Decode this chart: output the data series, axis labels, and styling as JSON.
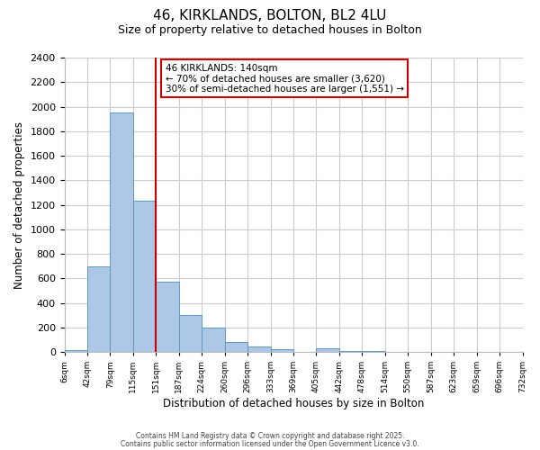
{
  "title": "46, KIRKLANDS, BOLTON, BL2 4LU",
  "subtitle": "Size of property relative to detached houses in Bolton",
  "xlabel": "Distribution of detached houses by size in Bolton",
  "ylabel": "Number of detached properties",
  "bar_values": [
    15,
    700,
    1950,
    1230,
    575,
    300,
    195,
    80,
    45,
    25,
    0,
    30,
    10,
    5,
    0,
    0,
    0,
    0,
    0,
    0
  ],
  "bin_edges": [
    6,
    42,
    79,
    115,
    151,
    187,
    224,
    260,
    296,
    333,
    369,
    405,
    442,
    478,
    514,
    550,
    587,
    623,
    659,
    696,
    732
  ],
  "bin_labels": [
    "6sqm",
    "42sqm",
    "79sqm",
    "115sqm",
    "151sqm",
    "187sqm",
    "224sqm",
    "260sqm",
    "296sqm",
    "333sqm",
    "369sqm",
    "405sqm",
    "442sqm",
    "478sqm",
    "514sqm",
    "550sqm",
    "587sqm",
    "623sqm",
    "659sqm",
    "696sqm",
    "732sqm"
  ],
  "bar_color": "#adc8e6",
  "bar_edge_color": "#5f9abe",
  "vertical_line_x": 4,
  "vertical_line_color": "#cc0000",
  "ylim": [
    0,
    2400
  ],
  "yticks": [
    0,
    200,
    400,
    600,
    800,
    1000,
    1200,
    1400,
    1600,
    1800,
    2000,
    2200,
    2400
  ],
  "annotation_title": "46 KIRKLANDS: 140sqm",
  "annotation_line1": "← 70% of detached houses are smaller (3,620)",
  "annotation_line2": "30% of semi-detached houses are larger (1,551) →",
  "annotation_box_color": "#ffffff",
  "annotation_box_edge_color": "#cc0000",
  "footer1": "Contains HM Land Registry data © Crown copyright and database right 2025.",
  "footer2": "Contains public sector information licensed under the Open Government Licence v3.0.",
  "background_color": "#ffffff",
  "grid_color": "#cccccc"
}
